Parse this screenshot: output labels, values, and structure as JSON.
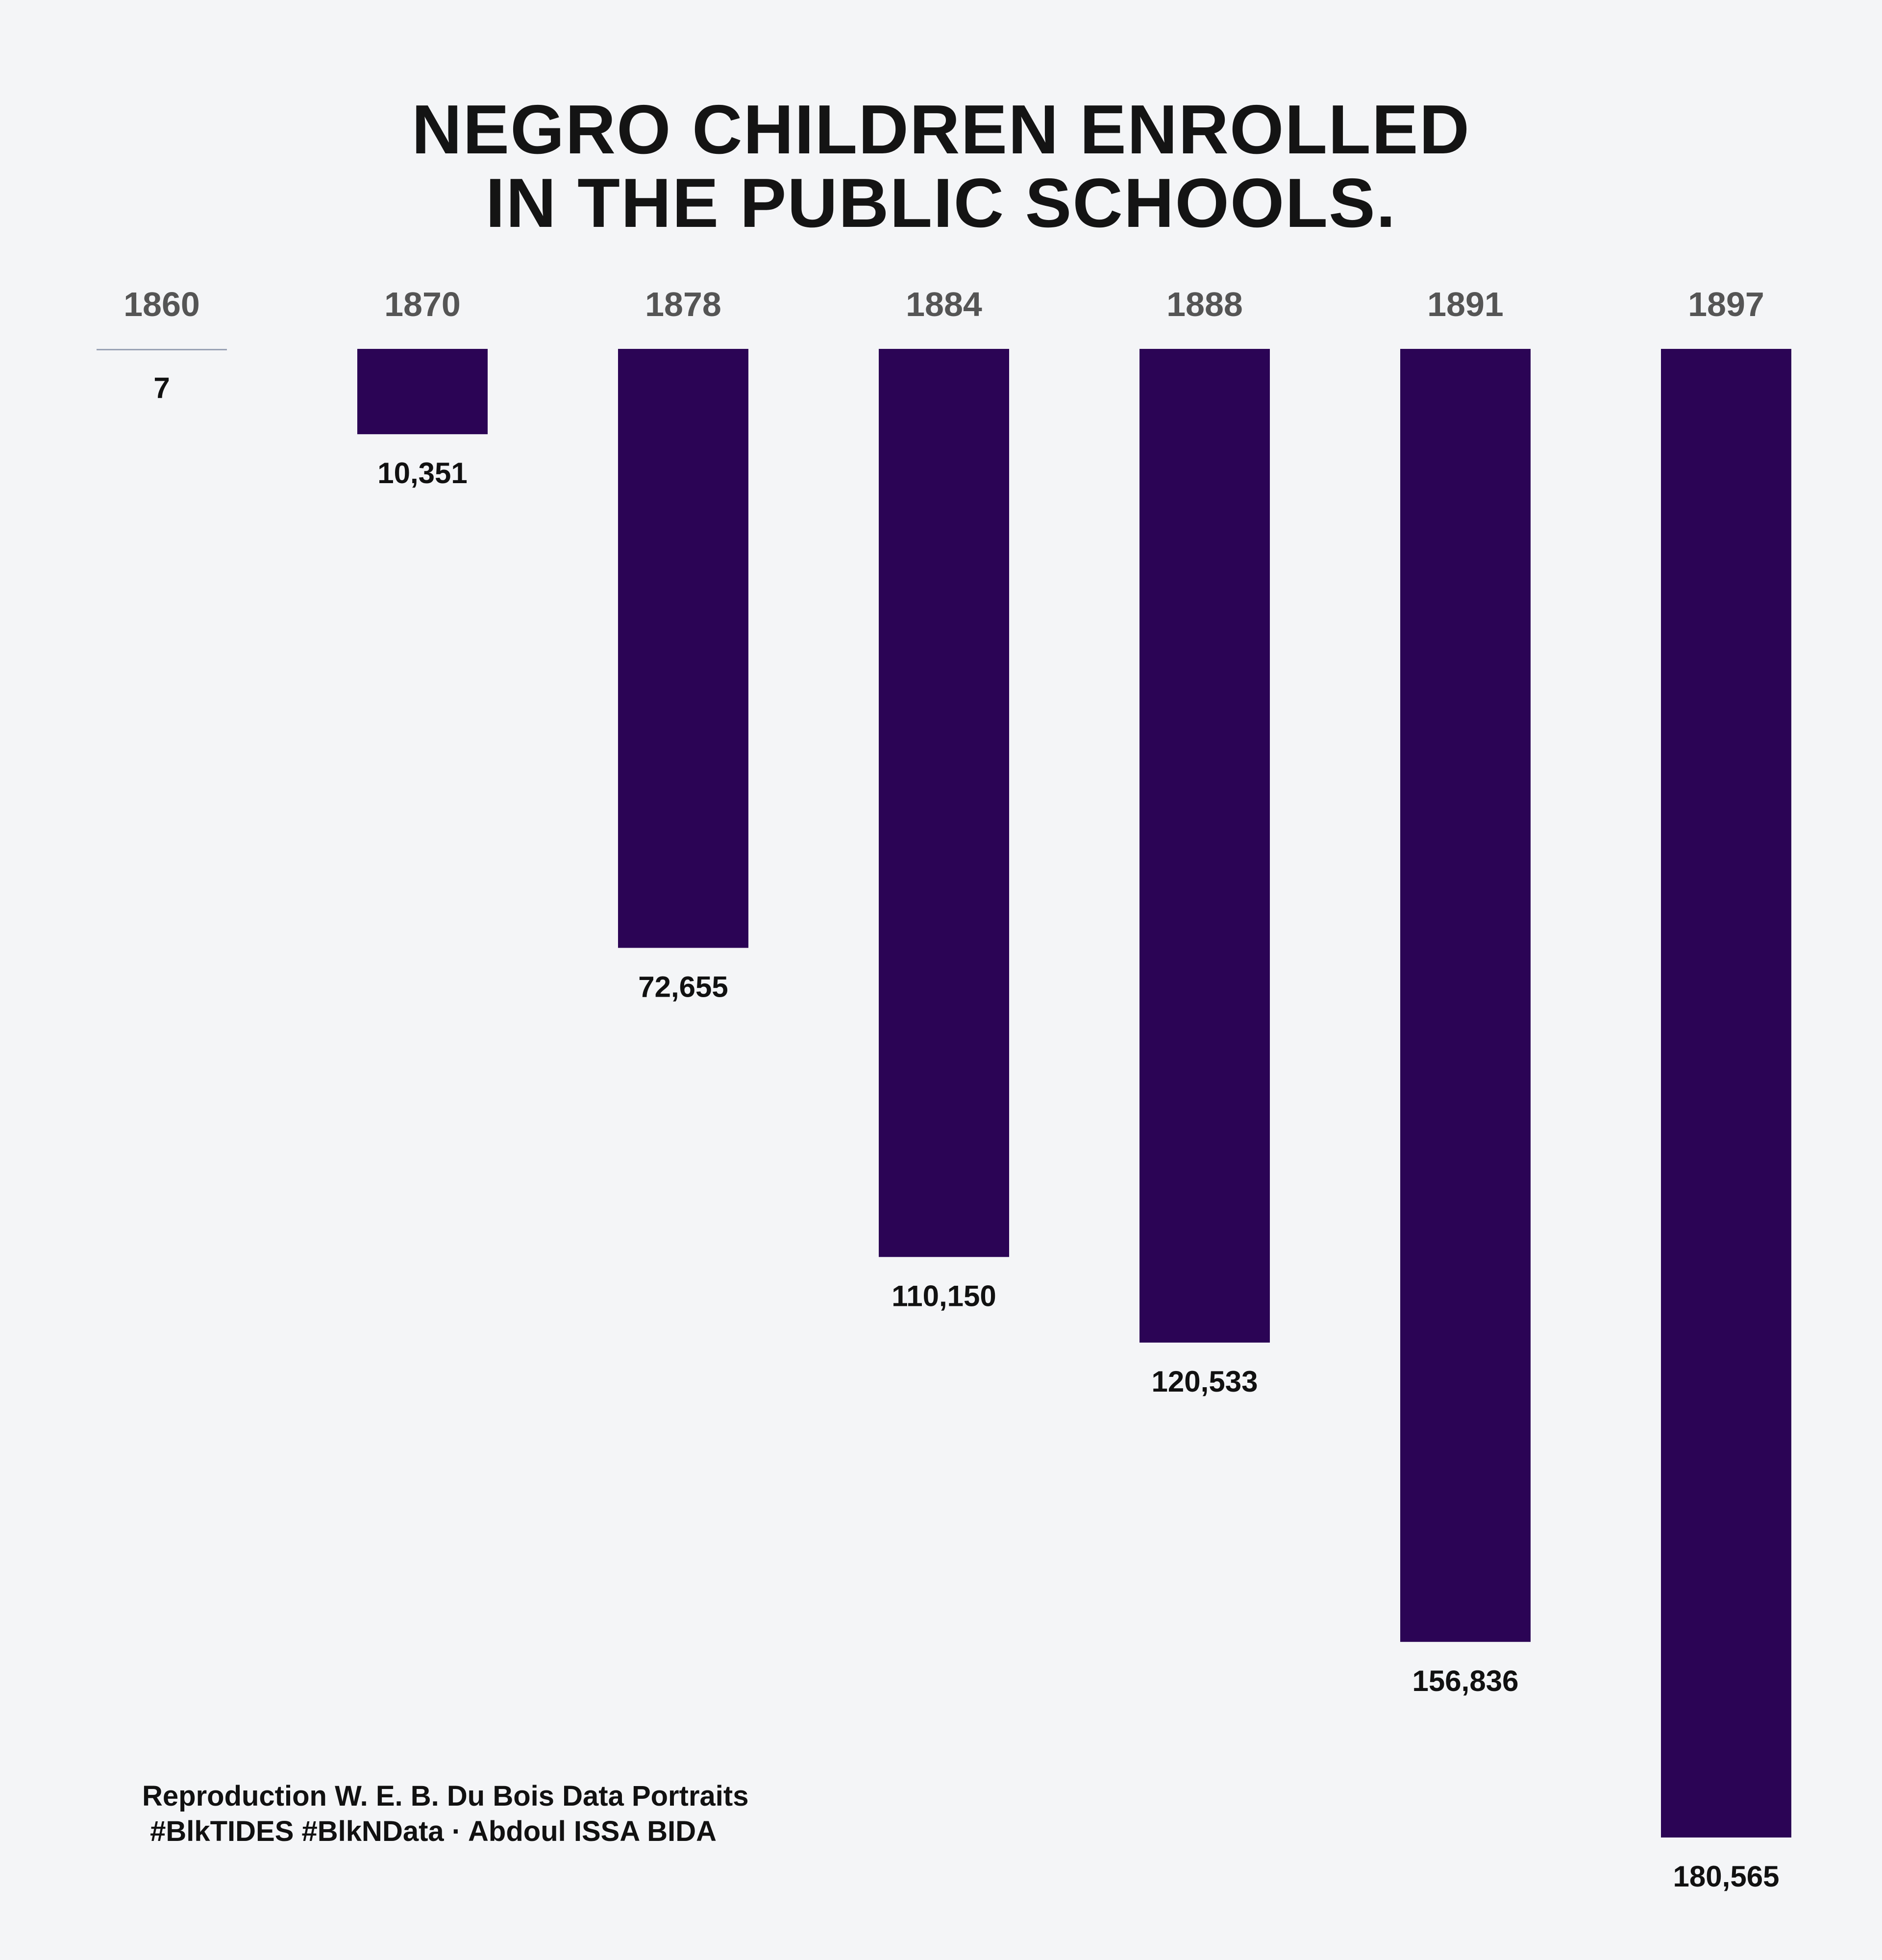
{
  "title_lines": [
    "NEGRO CHILDREN ENROLLED",
    "IN THE PUBLIC SCHOOLS."
  ],
  "credits": {
    "line1": "Reproduction W. E. B. Du Bois Data Portraits",
    "line2": " #BlkTIDES #BlkNData · Abdoul ISSA BIDA"
  },
  "colors": {
    "background": "#f4f5f7",
    "bar": "#2b0455",
    "baseline_stub": "#9aa3b5",
    "year_label": "#555555",
    "value_label": "#111111",
    "title": "#141414"
  },
  "chart_data": {
    "type": "bar",
    "orientation": "vertical-downward",
    "title": "NEGRO CHILDREN ENROLLED IN THE PUBLIC SCHOOLS.",
    "xlabel": "",
    "ylabel": "",
    "categories": [
      "1860",
      "1870",
      "1878",
      "1884",
      "1888",
      "1891",
      "1897"
    ],
    "values": [
      7,
      10351,
      72655,
      110150,
      120533,
      156836,
      180565
    ],
    "value_labels": [
      "7",
      "10,351",
      "72,655",
      "110,150",
      "120,533",
      "156,836",
      "180,565"
    ],
    "ylim": [
      0,
      180565
    ],
    "grid": false,
    "legend": "none"
  }
}
